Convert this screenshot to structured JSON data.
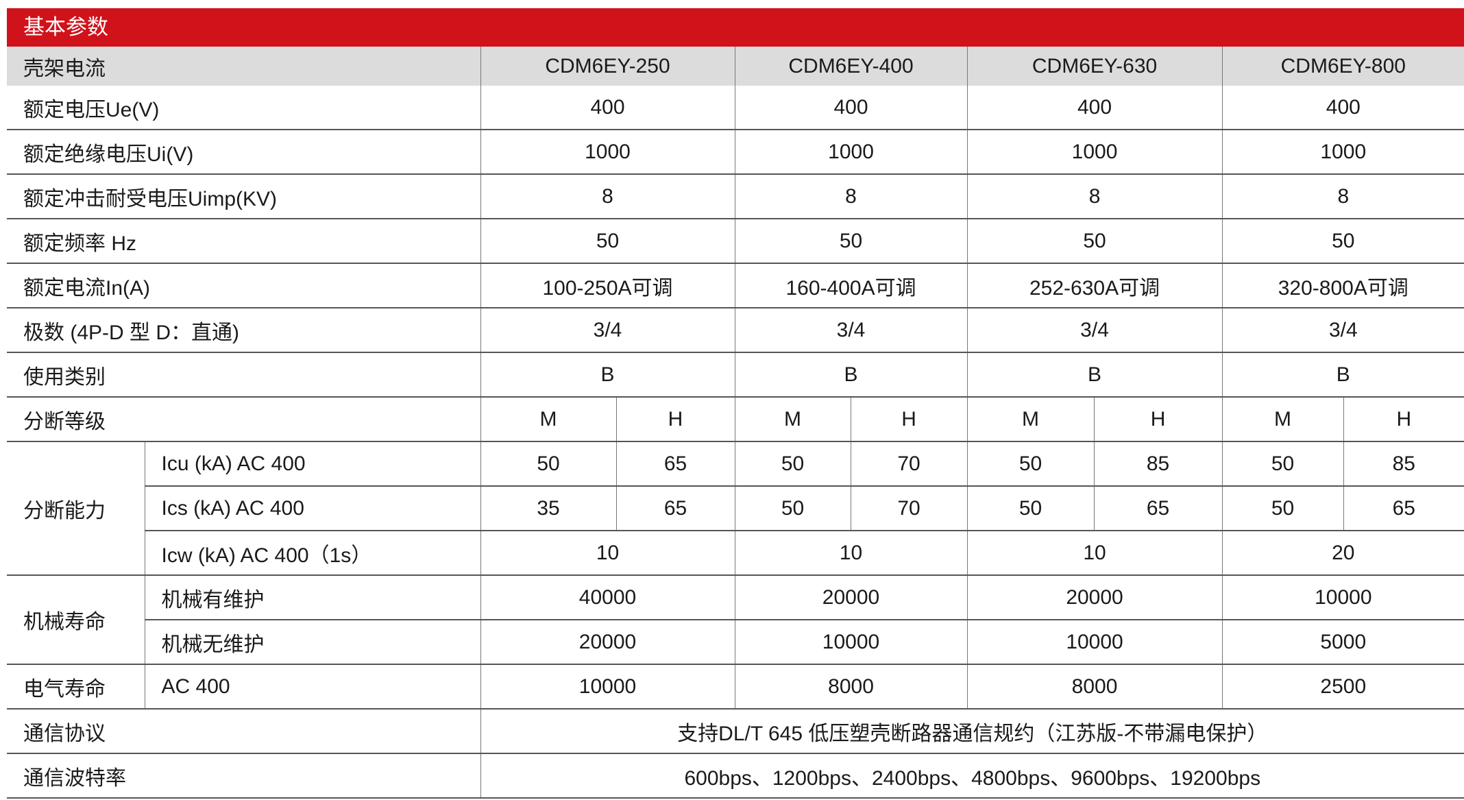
{
  "title": "基本参数",
  "header": {
    "label": "壳架电流",
    "models": [
      "CDM6EY-250",
      "CDM6EY-400",
      "CDM6EY-630",
      "CDM6EY-800"
    ]
  },
  "simple_rows": [
    {
      "label": "额定电压Ue(V)",
      "values": [
        "400",
        "400",
        "400",
        "400"
      ]
    },
    {
      "label": "额定绝缘电压Ui(V)",
      "values": [
        "1000",
        "1000",
        "1000",
        "1000"
      ]
    },
    {
      "label": "额定冲击耐受电压Uimp(KV)",
      "values": [
        "8",
        "8",
        "8",
        "8"
      ]
    },
    {
      "label": "额定频率 Hz",
      "values": [
        "50",
        "50",
        "50",
        "50"
      ]
    },
    {
      "label": "额定电流In(A)",
      "values": [
        "100-250A可调",
        "160-400A可调",
        "252-630A可调",
        "320-800A可调"
      ]
    },
    {
      "label": "极数 (4P-D 型  D：直通)",
      "values": [
        "3/4",
        "3/4",
        "3/4",
        "3/4"
      ]
    },
    {
      "label": "使用类别",
      "values": [
        "B",
        "B",
        "B",
        "B"
      ]
    }
  ],
  "breaking_grade": {
    "label": "分断等级",
    "values": [
      "M",
      "H",
      "M",
      "H",
      "M",
      "H",
      "M",
      "H"
    ]
  },
  "breaking_capacity": {
    "label": "分断能力",
    "icu": {
      "label": "Icu (kA)  AC 400",
      "values": [
        "50",
        "65",
        "50",
        "70",
        "50",
        "85",
        "50",
        "85"
      ]
    },
    "ics": {
      "label": "Ics (kA)   AC 400",
      "values": [
        "35",
        "65",
        "50",
        "70",
        "50",
        "65",
        "50",
        "65"
      ]
    },
    "icw": {
      "label": "Icw (kA)  AC 400（1s）",
      "values": [
        "10",
        "10",
        "10",
        "20"
      ]
    }
  },
  "mechanical_life": {
    "label": "机械寿命",
    "rows": [
      {
        "label": "机械有维护",
        "values": [
          "40000",
          "20000",
          "20000",
          "10000"
        ]
      },
      {
        "label": "机械无维护",
        "values": [
          "20000",
          "10000",
          "10000",
          "5000"
        ]
      }
    ]
  },
  "electrical_life": {
    "label": "电气寿命",
    "sub": "AC 400",
    "values": [
      "10000",
      "8000",
      "8000",
      "2500"
    ]
  },
  "protocol": {
    "label": "通信协议",
    "value": "支持DL/T 645 低压塑壳断路器通信规约（江苏版-不带漏电保护）"
  },
  "baud": {
    "label": "通信波特率",
    "value": "600bps、1200bps、2400bps、4800bps、9600bps、19200bps"
  },
  "colors": {
    "title_bar": "#d0121b",
    "header_row": "#dcdcdc"
  }
}
